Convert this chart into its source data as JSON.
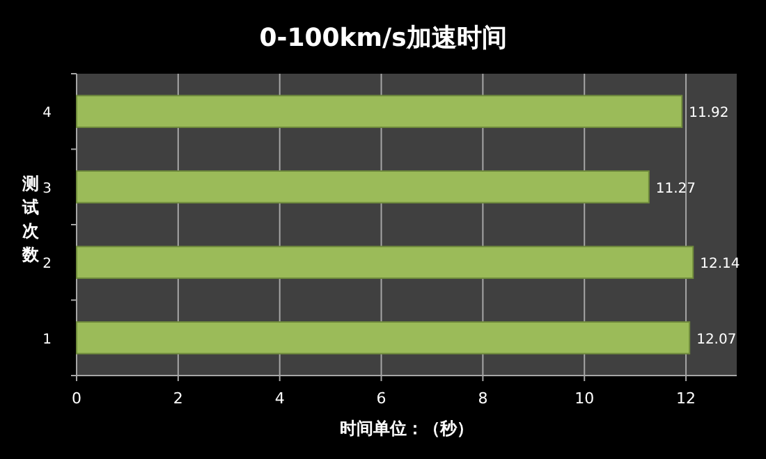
{
  "chart_data": {
    "type": "bar",
    "orientation": "horizontal",
    "title": "0-100km/s加速时间",
    "xlabel": "时间单位：（秒）",
    "ylabel": "测试次数",
    "categories": [
      "4",
      "3",
      "2",
      "1"
    ],
    "series": [
      {
        "color": "#9bbb59",
        "values": [
          11.92,
          11.27,
          12.14,
          12.07
        ]
      }
    ],
    "xlim": [
      0,
      13
    ],
    "xticks": [
      0,
      2,
      4,
      6,
      8,
      10,
      12
    ],
    "grid": "x",
    "data_labels": true
  }
}
